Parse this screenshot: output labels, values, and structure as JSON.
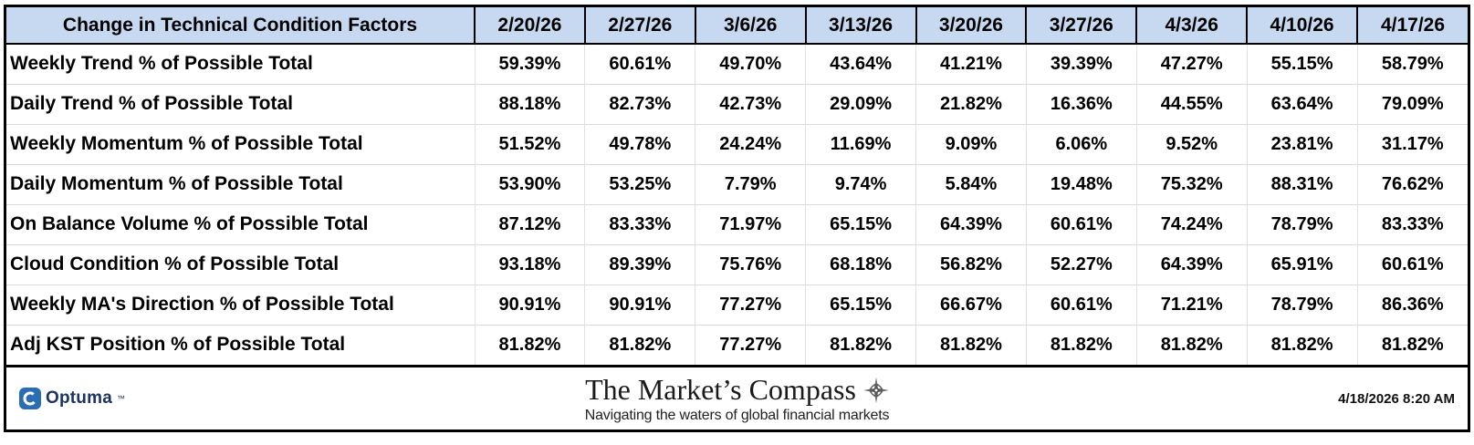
{
  "chart_data": {
    "type": "table",
    "title": "Change in Technical Condition Factors",
    "columns": [
      "2/20/26",
      "2/27/26",
      "3/6/26",
      "3/13/26",
      "3/20/26",
      "3/27/26",
      "4/3/26",
      "4/10/26",
      "4/17/26"
    ],
    "rows": [
      {
        "label": "Weekly Trend % of Possible Total",
        "values": [
          "59.39%",
          "60.61%",
          "49.70%",
          "43.64%",
          "41.21%",
          "39.39%",
          "47.27%",
          "55.15%",
          "58.79%"
        ]
      },
      {
        "label": "Daily Trend % of Possible Total",
        "values": [
          "88.18%",
          "82.73%",
          "42.73%",
          "29.09%",
          "21.82%",
          "16.36%",
          "44.55%",
          "63.64%",
          "79.09%"
        ]
      },
      {
        "label": "Weekly Momentum % of Possible Total",
        "values": [
          "51.52%",
          "49.78%",
          "24.24%",
          "11.69%",
          "9.09%",
          "6.06%",
          "9.52%",
          "23.81%",
          "31.17%"
        ]
      },
      {
        "label": "Daily Momentum % of Possible Total",
        "values": [
          "53.90%",
          "53.25%",
          "7.79%",
          "9.74%",
          "5.84%",
          "19.48%",
          "75.32%",
          "88.31%",
          "76.62%"
        ]
      },
      {
        "label": "On Balance Volume % of Possible Total",
        "values": [
          "87.12%",
          "83.33%",
          "71.97%",
          "65.15%",
          "64.39%",
          "60.61%",
          "74.24%",
          "78.79%",
          "83.33%"
        ]
      },
      {
        "label": "Cloud Condition % of Possible Total",
        "values": [
          "93.18%",
          "89.39%",
          "75.76%",
          "68.18%",
          "56.82%",
          "52.27%",
          "64.39%",
          "65.91%",
          "60.61%"
        ]
      },
      {
        "label": "Weekly MA's Direction % of Possible Total",
        "values": [
          "90.91%",
          "90.91%",
          "77.27%",
          "65.15%",
          "66.67%",
          "60.61%",
          "71.21%",
          "78.79%",
          "86.36%"
        ]
      },
      {
        "label": "Adj KST Position % of Possible Total",
        "values": [
          "81.82%",
          "81.82%",
          "77.27%",
          "81.82%",
          "81.82%",
          "81.82%",
          "81.82%",
          "81.82%",
          "81.82%"
        ]
      }
    ],
    "layout": {
      "header_bg": "#c6d9f1",
      "grid": "#d9d9d9",
      "border": "#000000"
    }
  },
  "footer": {
    "brand": "Optuma",
    "brand_mark": "™",
    "title": "The Market’s Compass",
    "tagline": "Navigating the waters of global financial markets",
    "timestamp": "4/18/2026 8:20 AM"
  },
  "icons": {
    "optuma_logo": "optuma-logo-icon",
    "compass": "compass-rose-icon"
  },
  "colors": {
    "header_bg": "#c6d9f1",
    "brand_blue": "#1b3461",
    "icon_blue": "#2a6db5"
  }
}
